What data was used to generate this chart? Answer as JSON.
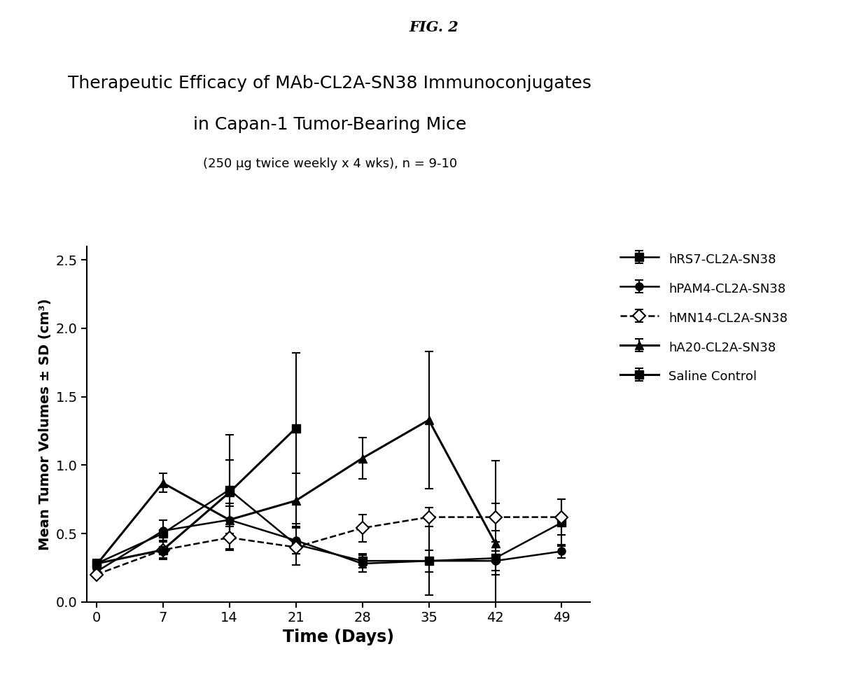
{
  "title_fig": "FIG. 2",
  "title_main_line1": "Therapeutic Efficacy of MAb-CL2A-SN38 Immunoconjugates",
  "title_main_line2": "in Capan-1 Tumor-Bearing Mice",
  "title_sub": "(250 μg twice weekly x 4 wks), n = 9-10",
  "xlabel": "Time (Days)",
  "ylabel": "Mean Tumor Volumes ± SD (cm³)",
  "xlim": [
    -1,
    52
  ],
  "ylim": [
    0.0,
    2.6
  ],
  "xticks": [
    0,
    7,
    14,
    21,
    28,
    35,
    42,
    49
  ],
  "yticks": [
    0.0,
    0.5,
    1.0,
    1.5,
    2.0,
    2.5
  ],
  "days": [
    0,
    7,
    14,
    21,
    28,
    35,
    42,
    49
  ],
  "series": {
    "hRS7": {
      "label": "hRS7-CL2A-SN38",
      "y": [
        0.28,
        0.5,
        0.82,
        0.42,
        0.3,
        0.3,
        0.32,
        0.58
      ],
      "yerr": [
        0.02,
        0.1,
        0.22,
        0.15,
        0.05,
        0.25,
        0.12,
        0.17
      ],
      "marker": "s",
      "linestyle": "-",
      "linewidth": 1.8,
      "color": "#000000",
      "markersize": 8,
      "fillstyle": "full"
    },
    "hPAM4": {
      "label": "hPAM4-CL2A-SN38",
      "y": [
        0.22,
        0.52,
        0.6,
        0.45,
        0.28,
        0.3,
        0.3,
        0.37
      ],
      "yerr": [
        0.02,
        0.08,
        0.1,
        0.1,
        0.06,
        0.08,
        0.07,
        0.05
      ],
      "marker": "o",
      "linestyle": "-",
      "linewidth": 1.8,
      "color": "#000000",
      "markersize": 8,
      "fillstyle": "full"
    },
    "hMN14": {
      "label": "hMN14-CL2A-SN38",
      "y": [
        0.2,
        0.38,
        0.47,
        0.4,
        0.54,
        0.62,
        0.62,
        0.62
      ],
      "yerr": [
        0.02,
        0.06,
        0.08,
        0.05,
        0.1,
        0.07,
        0.1,
        0.13
      ],
      "marker": "D",
      "linestyle": "--",
      "linewidth": 1.8,
      "color": "#000000",
      "markersize": 9,
      "fillstyle": "none"
    },
    "hA20": {
      "label": "hA20-CL2A-SN38",
      "y": [
        0.27,
        0.87,
        0.6,
        0.74,
        1.05,
        1.33,
        0.43,
        null
      ],
      "yerr": [
        0.03,
        0.07,
        0.12,
        0.2,
        0.15,
        0.5,
        0.6,
        null
      ],
      "marker": "^",
      "linestyle": "-",
      "linewidth": 2.2,
      "color": "#000000",
      "markersize": 9,
      "fillstyle": "full"
    },
    "saline": {
      "label": "Saline Control",
      "y": [
        0.28,
        0.38,
        0.8,
        1.27,
        null,
        null,
        null,
        null
      ],
      "yerr": [
        0.03,
        0.07,
        0.42,
        0.55,
        null,
        null,
        null,
        null
      ],
      "marker": "s",
      "linestyle": "-",
      "linewidth": 2.2,
      "color": "#000000",
      "markersize": 9,
      "fillstyle": "full"
    }
  }
}
